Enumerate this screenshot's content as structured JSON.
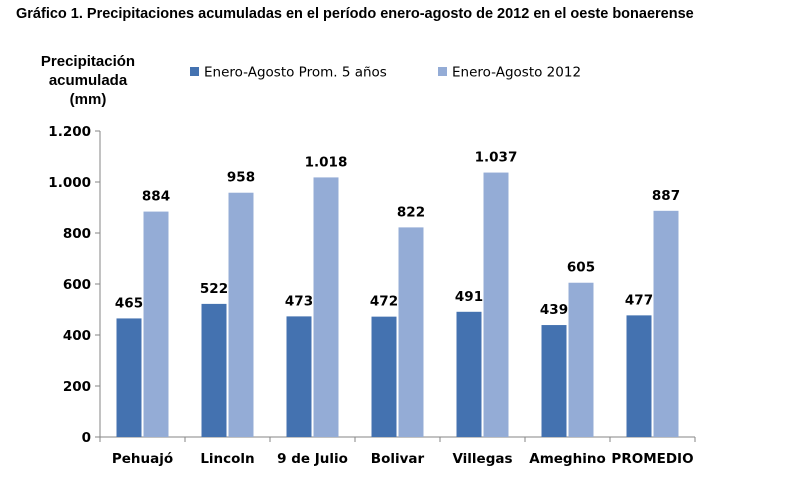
{
  "chart_data": {
    "type": "bar",
    "title": "Gráfico 1. Precipitaciones acumuladas en el período enero-agosto de 2012 en el oeste bonaerense",
    "ylabel": [
      "Precipitación",
      "acumulada",
      "(mm)"
    ],
    "xlabel": "",
    "ylim": [
      0,
      1200
    ],
    "yticks": [
      0,
      200,
      400,
      600,
      800,
      1000,
      1200
    ],
    "ytick_labels": [
      "0",
      "200",
      "400",
      "600",
      "800",
      "1.000",
      "1.200"
    ],
    "grid": false,
    "legend_position": "top",
    "categories": [
      "Pehuajó",
      "Lincoln",
      "9 de Julio",
      "Bolivar",
      "Villegas",
      "Ameghino",
      "PROMEDIO"
    ],
    "series": [
      {
        "name": "Enero-Agosto Prom. 5 años",
        "color": "#4472b0",
        "values": [
          465,
          522,
          473,
          472,
          491,
          439,
          477
        ],
        "labels": [
          "465",
          "522",
          "473",
          "472",
          "491",
          "439",
          "477"
        ]
      },
      {
        "name": "Enero-Agosto 2012",
        "color": "#94acd6",
        "values": [
          884,
          958,
          1018,
          822,
          1037,
          605,
          887
        ],
        "labels": [
          "884",
          "958",
          "1.018",
          "822",
          "1.037",
          "605",
          "887"
        ]
      }
    ]
  }
}
